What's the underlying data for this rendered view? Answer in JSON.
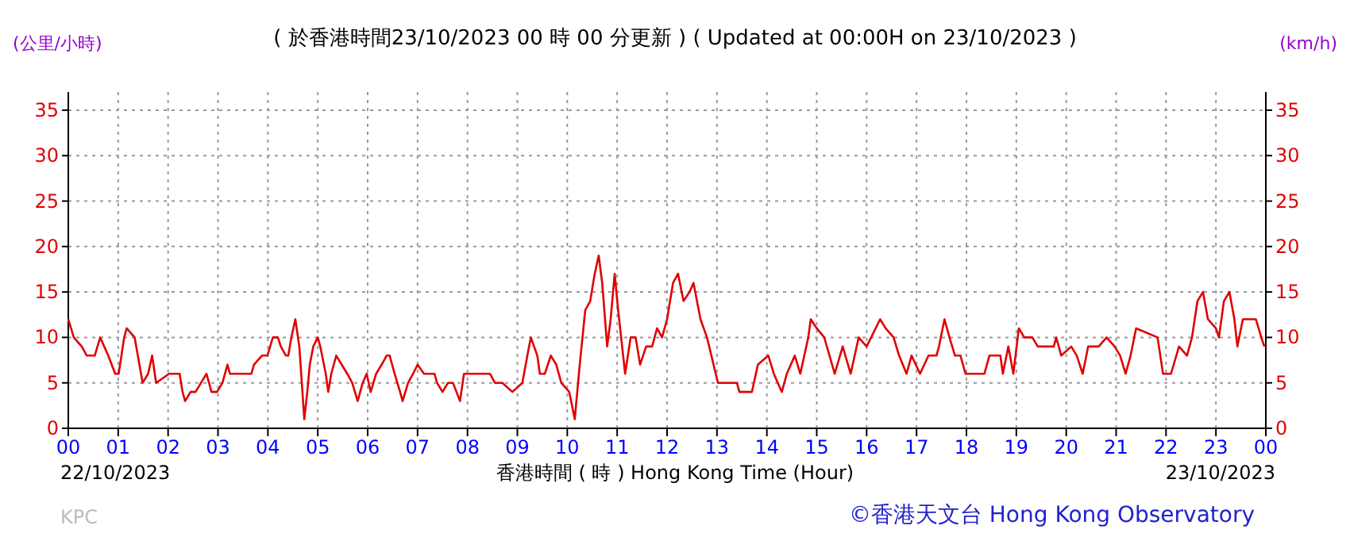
{
  "chart_data": {
    "type": "line",
    "title": "( 於香港時間23/10/2023 00 時 00 分更新 ) ( Updated at 00:00H on 23/10/2023 )",
    "xlabel": "香港時間 ( 時 ) Hong Kong Time (Hour)",
    "ylabel": "(公里/小時)",
    "y2label": "(km/h)",
    "annotations": [
      "22/10/2023",
      "23/10/2023",
      "KPC",
      "©香港天文台 Hong Kong Observatory"
    ],
    "xlim": [
      0,
      24
    ],
    "ylim": [
      0,
      37
    ],
    "y2lim": [
      0,
      37
    ],
    "xticks": [
      {
        "value": 0,
        "label": "00"
      },
      {
        "value": 1,
        "label": "01"
      },
      {
        "value": 2,
        "label": "02"
      },
      {
        "value": 3,
        "label": "03"
      },
      {
        "value": 4,
        "label": "04"
      },
      {
        "value": 5,
        "label": "05"
      },
      {
        "value": 6,
        "label": "06"
      },
      {
        "value": 7,
        "label": "07"
      },
      {
        "value": 8,
        "label": "08"
      },
      {
        "value": 9,
        "label": "09"
      },
      {
        "value": 10,
        "label": "10"
      },
      {
        "value": 11,
        "label": "11"
      },
      {
        "value": 12,
        "label": "12"
      },
      {
        "value": 13,
        "label": "13"
      },
      {
        "value": 14,
        "label": "14"
      },
      {
        "value": 15,
        "label": "15"
      },
      {
        "value": 16,
        "label": "16"
      },
      {
        "value": 17,
        "label": "17"
      },
      {
        "value": 18,
        "label": "18"
      },
      {
        "value": 19,
        "label": "19"
      },
      {
        "value": 20,
        "label": "20"
      },
      {
        "value": 21,
        "label": "21"
      },
      {
        "value": 22,
        "label": "22"
      },
      {
        "value": 23,
        "label": "23"
      },
      {
        "value": 24,
        "label": "00"
      }
    ],
    "yticks": [
      0,
      5,
      10,
      15,
      20,
      25,
      30,
      35
    ],
    "y2ticks": [
      0,
      5,
      10,
      15,
      20,
      25,
      30,
      35
    ],
    "grid": true,
    "marker": "none",
    "series": [
      {
        "color": "#e00000",
        "line_style": "solid",
        "x": [
          0,
          0.11,
          0.27,
          0.37,
          0.53,
          0.64,
          0.72,
          0.8,
          0.94,
          1.01,
          1.12,
          1.17,
          1.33,
          1.49,
          1.6,
          1.68,
          1.76,
          2.02,
          2.23,
          2.29,
          2.34,
          2.45,
          2.55,
          2.66,
          2.77,
          2.87,
          2.98,
          3.09,
          3.19,
          3.24,
          3.67,
          3.72,
          3.88,
          3.99,
          4.1,
          4.2,
          4.26,
          4.36,
          4.41,
          4.47,
          4.55,
          4.63,
          4.68,
          4.73,
          4.79,
          4.84,
          4.91,
          5.0,
          5.05,
          5.16,
          5.21,
          5.27,
          5.37,
          5.48,
          5.59,
          5.69,
          5.8,
          5.9,
          5.98,
          6.06,
          6.17,
          6.28,
          6.38,
          6.44,
          6.54,
          6.65,
          6.7,
          6.81,
          6.91,
          7.0,
          7.13,
          7.34,
          7.39,
          7.5,
          7.61,
          7.71,
          7.85,
          7.93,
          8.13,
          8.3,
          8.45,
          8.55,
          8.7,
          8.9,
          9.1,
          9.2,
          9.27,
          9.4,
          9.45,
          9.55,
          9.67,
          9.78,
          9.88,
          10.04,
          10.15,
          10.25,
          10.36,
          10.46,
          10.55,
          10.63,
          10.7,
          10.8,
          10.87,
          10.95,
          11.02,
          11.1,
          11.16,
          11.27,
          11.37,
          11.46,
          11.58,
          11.7,
          11.8,
          11.9,
          12.0,
          12.12,
          12.22,
          12.33,
          12.45,
          12.53,
          12.67,
          12.8,
          13.02,
          13.4,
          13.45,
          13.7,
          13.82,
          14.03,
          14.14,
          14.3,
          14.4,
          14.56,
          14.67,
          14.83,
          14.88,
          15.0,
          15.15,
          15.36,
          15.52,
          15.68,
          15.84,
          16.0,
          16.27,
          16.38,
          16.54,
          16.65,
          16.8,
          16.9,
          17.07,
          17.24,
          17.4,
          17.45,
          17.56,
          17.66,
          17.77,
          17.88,
          17.98,
          18.36,
          18.46,
          18.68,
          18.73,
          18.84,
          18.94,
          19.05,
          19.16,
          19.32,
          19.43,
          19.75,
          19.8,
          19.9,
          20.1,
          20.21,
          20.33,
          20.44,
          20.65,
          20.81,
          20.97,
          21.08,
          21.19,
          21.29,
          21.4,
          21.83,
          21.94,
          22.1,
          22.26,
          22.42,
          22.52,
          22.63,
          22.74,
          22.84,
          23.0,
          23.06,
          23.16,
          23.27,
          23.37,
          23.43,
          23.54,
          23.8,
          23.91,
          23.97
        ],
        "values": [
          12,
          10,
          9,
          8,
          8,
          10,
          9,
          8,
          6,
          6,
          10,
          11,
          10,
          5,
          6,
          8,
          5,
          6,
          6,
          4,
          3,
          4,
          4,
          5,
          6,
          4,
          4,
          5,
          7,
          6,
          6,
          7,
          8,
          8,
          10,
          10,
          9,
          8,
          8,
          10,
          12,
          9,
          5,
          1,
          4,
          7,
          9,
          10,
          9,
          6,
          4,
          6,
          8,
          7,
          6,
          5,
          3,
          5,
          6,
          4,
          6,
          7,
          8,
          8,
          6,
          4,
          3,
          5,
          6,
          7,
          6,
          6,
          5,
          4,
          5,
          5,
          3,
          6,
          6,
          6,
          6,
          5,
          5,
          4,
          5,
          8,
          10,
          8,
          6,
          6,
          8,
          7,
          5,
          4,
          1,
          7,
          13,
          14,
          17,
          19,
          16,
          9,
          12,
          17,
          13,
          9,
          6,
          10,
          10,
          7,
          9,
          9,
          11,
          10,
          12,
          16,
          17,
          14,
          15,
          16,
          12,
          10,
          5,
          5,
          4,
          4,
          7,
          8,
          6,
          4,
          6,
          8,
          6,
          10,
          12,
          11,
          10,
          6,
          9,
          6,
          10,
          9,
          12,
          11,
          10,
          8,
          6,
          8,
          6,
          8,
          8,
          9,
          12,
          10,
          8,
          8,
          6,
          6,
          8,
          8,
          6,
          9,
          6,
          11,
          10,
          10,
          9,
          9,
          10,
          8,
          9,
          8,
          6,
          9,
          9,
          10,
          9,
          8,
          6,
          8,
          11,
          10,
          6,
          6,
          9,
          8,
          10,
          14,
          15,
          12,
          11,
          10,
          14,
          15,
          12,
          9,
          12,
          12,
          10,
          9
        ]
      }
    ]
  }
}
